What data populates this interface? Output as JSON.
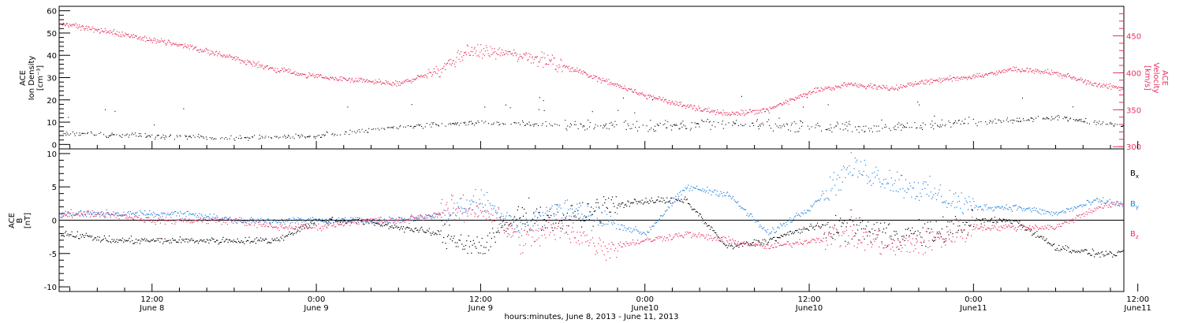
{
  "colors": {
    "black": "#000000",
    "pink": "#e8325f",
    "blue": "#1f7fe0"
  },
  "chart_data": [
    {
      "type": "scatter",
      "panel": "top",
      "ylabel_left": [
        "ACE",
        "Ion Density",
        "[cm⁻³]"
      ],
      "ylabel_right": [
        "ACE",
        "Velocity",
        "[km/s]"
      ],
      "yticks_left": [
        "0",
        "10",
        "20",
        "30",
        "40",
        "50",
        "60"
      ],
      "ylim_left": [
        -2,
        62
      ],
      "yticks_right": [
        "300",
        "350",
        "400",
        "450"
      ],
      "ylim_right": [
        297,
        490
      ],
      "series": [
        {
          "axis": "left",
          "color": "#000000",
          "x_hours": [
            0,
            6,
            12,
            18,
            24,
            30,
            36,
            42,
            48,
            54,
            60,
            66,
            72,
            78,
            84,
            90,
            94
          ],
          "values": [
            5,
            4,
            3,
            4,
            8,
            10,
            9,
            8,
            10,
            8,
            8,
            10,
            12,
            8,
            4,
            4,
            5
          ]
        },
        {
          "axis": "right",
          "color": "#e8325f",
          "x_hours": [
            0,
            3,
            6,
            9,
            12,
            15,
            18,
            21,
            24,
            27,
            29,
            33,
            36,
            39,
            42,
            45,
            48,
            51,
            54,
            57,
            60,
            63,
            66,
            69,
            72,
            75,
            78,
            81,
            84,
            87,
            90,
            94
          ],
          "values": [
            465,
            455,
            445,
            435,
            420,
            405,
            395,
            390,
            385,
            405,
            430,
            425,
            410,
            390,
            370,
            355,
            345,
            350,
            375,
            385,
            380,
            390,
            395,
            405,
            400,
            385,
            375,
            370,
            385,
            400,
            405,
            410
          ]
        }
      ]
    },
    {
      "type": "scatter",
      "panel": "bottom",
      "ylabel_left": [
        "ACE",
        "B",
        "[nT]"
      ],
      "yticks_left": [
        "-10",
        "-5",
        "0",
        "5",
        "10"
      ],
      "ylim_left": [
        -10.7,
        10.7
      ],
      "legend": [
        "Bx",
        "By",
        "Bz"
      ],
      "legend_placement": "right",
      "series": [
        {
          "name": "Bx",
          "color": "#000000",
          "x_hours": [
            0,
            3,
            6,
            9,
            12,
            15,
            18,
            21,
            24,
            27,
            30,
            33,
            36,
            39,
            42,
            45,
            48,
            51,
            54,
            57,
            60,
            63,
            66,
            69,
            72,
            75,
            78,
            81,
            84,
            87,
            90,
            94
          ],
          "values": [
            -2,
            -3,
            -3,
            -3,
            -3,
            -3,
            0,
            0,
            -1,
            -2,
            -4,
            1,
            0,
            2,
            3,
            3,
            -4,
            -3,
            -1,
            -1,
            -2,
            -2,
            0,
            0,
            -4,
            -5,
            -5,
            -5,
            -4,
            -4,
            -4,
            -2
          ]
        },
        {
          "name": "By",
          "color": "#1f7fe0",
          "x_hours": [
            0,
            3,
            6,
            9,
            12,
            15,
            18,
            21,
            24,
            27,
            30,
            33,
            36,
            39,
            42,
            45,
            48,
            51,
            54,
            57,
            60,
            63,
            66,
            69,
            72,
            75,
            78,
            81,
            84,
            87,
            90,
            94
          ],
          "values": [
            1,
            1,
            1,
            1,
            0,
            0,
            0,
            0,
            0,
            1,
            3,
            -1,
            2,
            0,
            -2,
            5,
            4,
            -2,
            2,
            8,
            6,
            4,
            2,
            2,
            1,
            3,
            2,
            3,
            4,
            0,
            5,
            7
          ]
        },
        {
          "name": "Bz",
          "color": "#e8325f",
          "x_hours": [
            0,
            3,
            6,
            9,
            12,
            15,
            18,
            21,
            24,
            27,
            30,
            33,
            36,
            39,
            42,
            45,
            48,
            51,
            54,
            57,
            60,
            63,
            66,
            69,
            72,
            75,
            78,
            81,
            84,
            87,
            90,
            94
          ],
          "values": [
            1,
            1,
            0,
            0,
            0,
            -1,
            -1,
            0,
            0,
            1,
            2,
            -3,
            -1,
            -4,
            -3,
            -2,
            -3,
            -4,
            -3,
            -2,
            -4,
            -3,
            -1,
            -1,
            -1,
            2,
            3,
            3,
            4,
            3,
            3,
            1
          ]
        }
      ]
    }
  ],
  "x_axis": {
    "ticks": [
      {
        "time": "12:00",
        "date": "June 8"
      },
      {
        "time": "0:00",
        "date": "June 9"
      },
      {
        "time": "12:00",
        "date": "June 9"
      },
      {
        "time": "0:00",
        "date": "June10"
      },
      {
        "time": "12:00",
        "date": "June10"
      },
      {
        "time": "0:00",
        "date": "June11"
      },
      {
        "time": "12:00",
        "date": "June11"
      }
    ],
    "title": "hours:minutes, June  8, 2013 - June 11, 2013"
  }
}
